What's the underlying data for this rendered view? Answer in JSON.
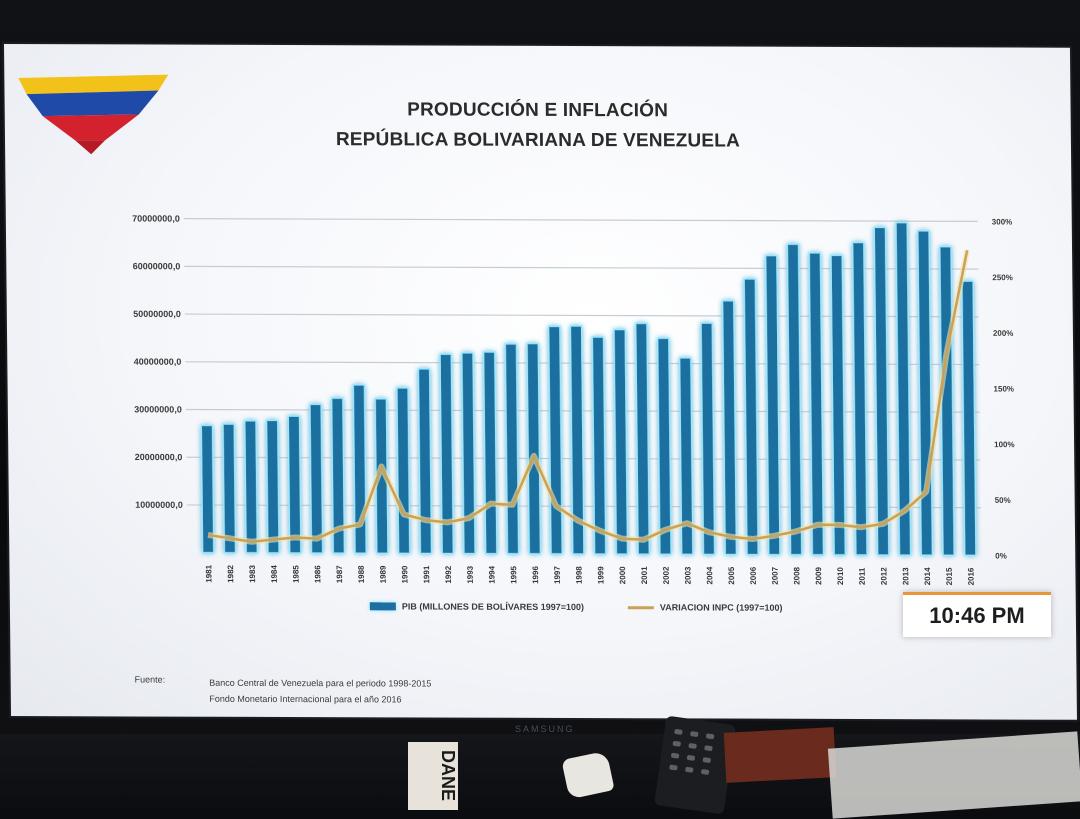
{
  "title_line1": "PRODUCCIÓN E INFLACIÓN",
  "title_line2": "REPÚBLICA BOLIVARIANA DE VENEZUELA",
  "legend": {
    "bar_label": "PIB (MILLONES DE BOLÍVARES 1997=100)",
    "line_label": "VARIACION INPC (1997=100)"
  },
  "source": {
    "label": "Fuente:",
    "line1": "Banco Central de Venezuela para el periodo 1998-2015",
    "line2": "Fondo Monetario Internacional para el año 2016"
  },
  "clock": "10:46 PM",
  "tv_brand": "SAMSUNG",
  "desk_text": "DANE",
  "colors": {
    "bar": "#1c6fa0",
    "bar_glow": "#9be9ff",
    "line": "#c9a257",
    "grid": "#c7ccd4",
    "clock_accent": "#e8953a"
  },
  "chart_data": {
    "type": "bar",
    "title": "PRODUCCIÓN E INFLACIÓN REPÚBLICA BOLIVARIANA DE VENEZUELA",
    "categories": [
      "1981",
      "1982",
      "1983",
      "1984",
      "1985",
      "1986",
      "1987",
      "1988",
      "1989",
      "1990",
      "1991",
      "1992",
      "1993",
      "1994",
      "1995",
      "1996",
      "1997",
      "1998",
      "1999",
      "2000",
      "2001",
      "2002",
      "2003",
      "2004",
      "2005",
      "2006",
      "2007",
      "2008",
      "2009",
      "2010",
      "2011",
      "2012",
      "2013",
      "2014",
      "2015",
      "2016"
    ],
    "y_left": {
      "ticks": [
        "0",
        "10000000,0",
        "20000000,0",
        "30000000,0",
        "40000000,0",
        "50000000,0",
        "60000000,0",
        "70000000,0"
      ],
      "visible_tick_labels": [
        "10000000,0",
        "20000000,0",
        "30000000,0",
        "40000000,0",
        "50000000,0",
        "60000000,0",
        "70000000,0"
      ],
      "ylim": [
        0,
        70000000
      ]
    },
    "y_right": {
      "ticks": [
        "0%",
        "50%",
        "100%",
        "150%",
        "200%",
        "250%",
        "300%"
      ],
      "ylim": [
        0,
        300
      ]
    },
    "grid": true,
    "legend_position": "bottom",
    "series": [
      {
        "name": "PIB (MILLONES DE BOLÍVARES 1997=100)",
        "type": "bar",
        "axis": "left",
        "values": [
          26700000,
          27000000,
          27700000,
          27800000,
          28700000,
          31200000,
          32500000,
          35300000,
          32400000,
          34700000,
          38700000,
          41800000,
          42100000,
          42300000,
          44000000,
          44100000,
          47700000,
          47800000,
          45500000,
          47100000,
          48400000,
          45300000,
          41200000,
          48500000,
          53200000,
          57800000,
          62700000,
          65100000,
          63300000,
          62800000,
          65500000,
          68700000,
          69700000,
          68000000,
          64700000,
          57500000
        ]
      },
      {
        "name": "VARIACION INPC (1997=100)",
        "type": "line",
        "axis": "right",
        "values": [
          16,
          13,
          10,
          12,
          14,
          13,
          22,
          26,
          78,
          35,
          30,
          28,
          32,
          45,
          44,
          88,
          43,
          30,
          21,
          14,
          13,
          22,
          28,
          20,
          16,
          14,
          17,
          21,
          27,
          27,
          25,
          28,
          40,
          57,
          181,
          274
        ]
      }
    ]
  }
}
